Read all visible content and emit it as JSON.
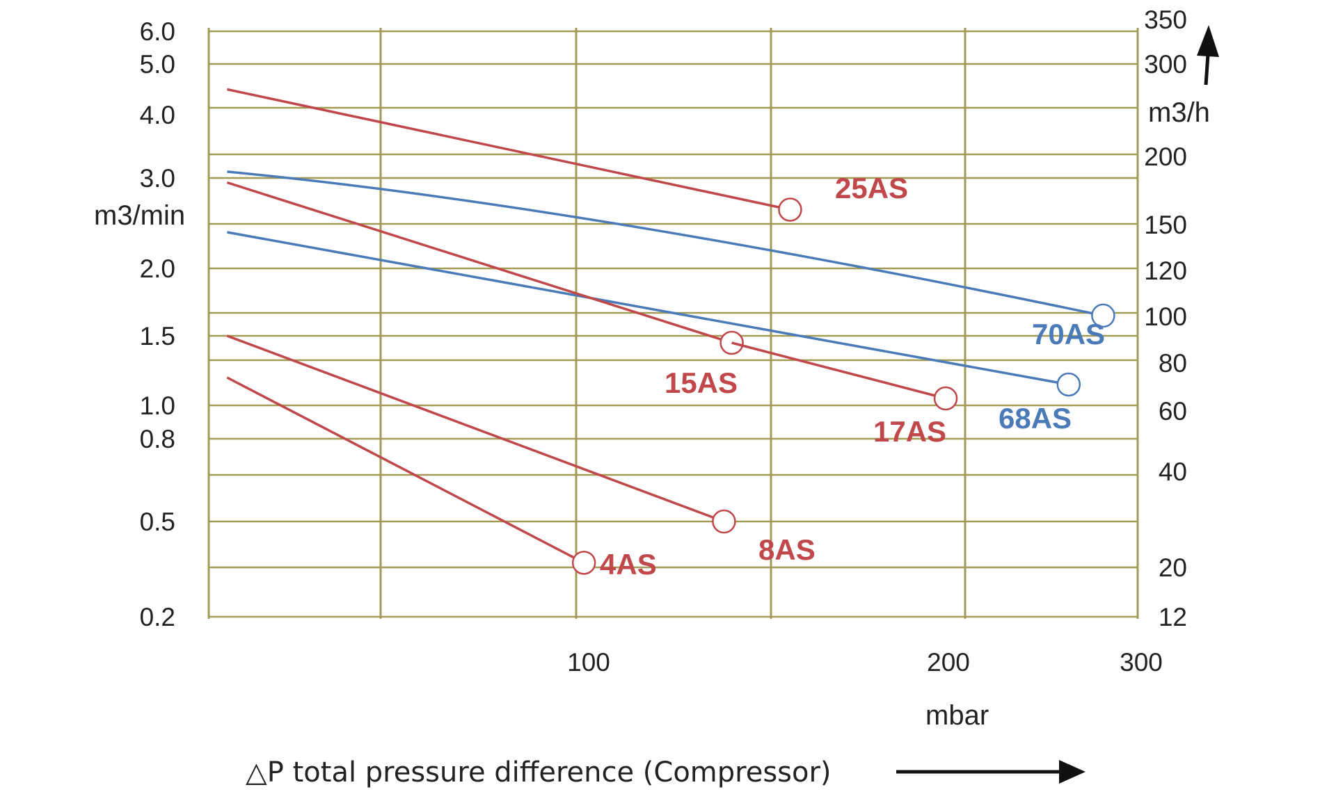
{
  "chart_data": {
    "type": "line",
    "title": "",
    "xlabel": "△P total pressure difference (Compressor)",
    "x_unit": "mbar",
    "ylabel_left": "m3/min",
    "ylabel_right": "m3/h",
    "x_ticks": [
      {
        "value": 100,
        "label": "100"
      },
      {
        "value": 200,
        "label": "200"
      },
      {
        "value": 300,
        "label": "300"
      }
    ],
    "y_left_ticks": [
      {
        "value": 6.0,
        "label": "6.0"
      },
      {
        "value": 5.0,
        "label": "5.0"
      },
      {
        "value": 4.0,
        "label": "4.0"
      },
      {
        "value": 3.0,
        "label": "3.0"
      },
      {
        "value": 2.0,
        "label": "2.0"
      },
      {
        "value": 1.5,
        "label": "1.5"
      },
      {
        "value": 1.0,
        "label": "1.0"
      },
      {
        "value": 0.8,
        "label": "0.8"
      },
      {
        "value": 0.5,
        "label": "0.5"
      },
      {
        "value": 0.2,
        "label": "0.2"
      }
    ],
    "y_right_ticks": [
      {
        "value": 350,
        "label": "350"
      },
      {
        "value": 300,
        "label": "300"
      },
      {
        "value": 200,
        "label": "200"
      },
      {
        "value": 150,
        "label": "150"
      },
      {
        "value": 120,
        "label": "120"
      },
      {
        "value": 100,
        "label": "100"
      },
      {
        "value": 80,
        "label": "80"
      },
      {
        "value": 60,
        "label": "60"
      },
      {
        "value": 40,
        "label": "40"
      },
      {
        "value": 20,
        "label": "20"
      },
      {
        "value": 12,
        "label": "12"
      }
    ],
    "grid": true,
    "series": [
      {
        "name": "25AS",
        "color": "#c0474a",
        "x": [
          5,
          155
        ],
        "y_m3_per_min": [
          4.5,
          2.65
        ]
      },
      {
        "name": "70AS",
        "color": "#4a7bb8",
        "x": [
          5,
          100,
          280
        ],
        "y_m3_per_min": [
          3.1,
          2.7,
          1.65
        ]
      },
      {
        "name": "68AS",
        "color": "#4a7bb8",
        "x": [
          5,
          260
        ],
        "y_m3_per_min": [
          2.4,
          1.15
        ]
      },
      {
        "name": "15AS",
        "color": "#c0474a",
        "x": [
          5,
          140
        ],
        "y_m3_per_min": [
          2.95,
          1.45
        ]
      },
      {
        "name": "17AS",
        "color": "#c0474a",
        "x": [
          140,
          195
        ],
        "y_m3_per_min": [
          1.45,
          1.05
        ]
      },
      {
        "name": "8AS",
        "color": "#c0474a",
        "x": [
          5,
          138
        ],
        "y_m3_per_min": [
          1.5,
          0.5
        ]
      },
      {
        "name": "4AS",
        "color": "#c0474a",
        "x": [
          5,
          102
        ],
        "y_m3_per_min": [
          1.2,
          0.37
        ]
      }
    ]
  }
}
